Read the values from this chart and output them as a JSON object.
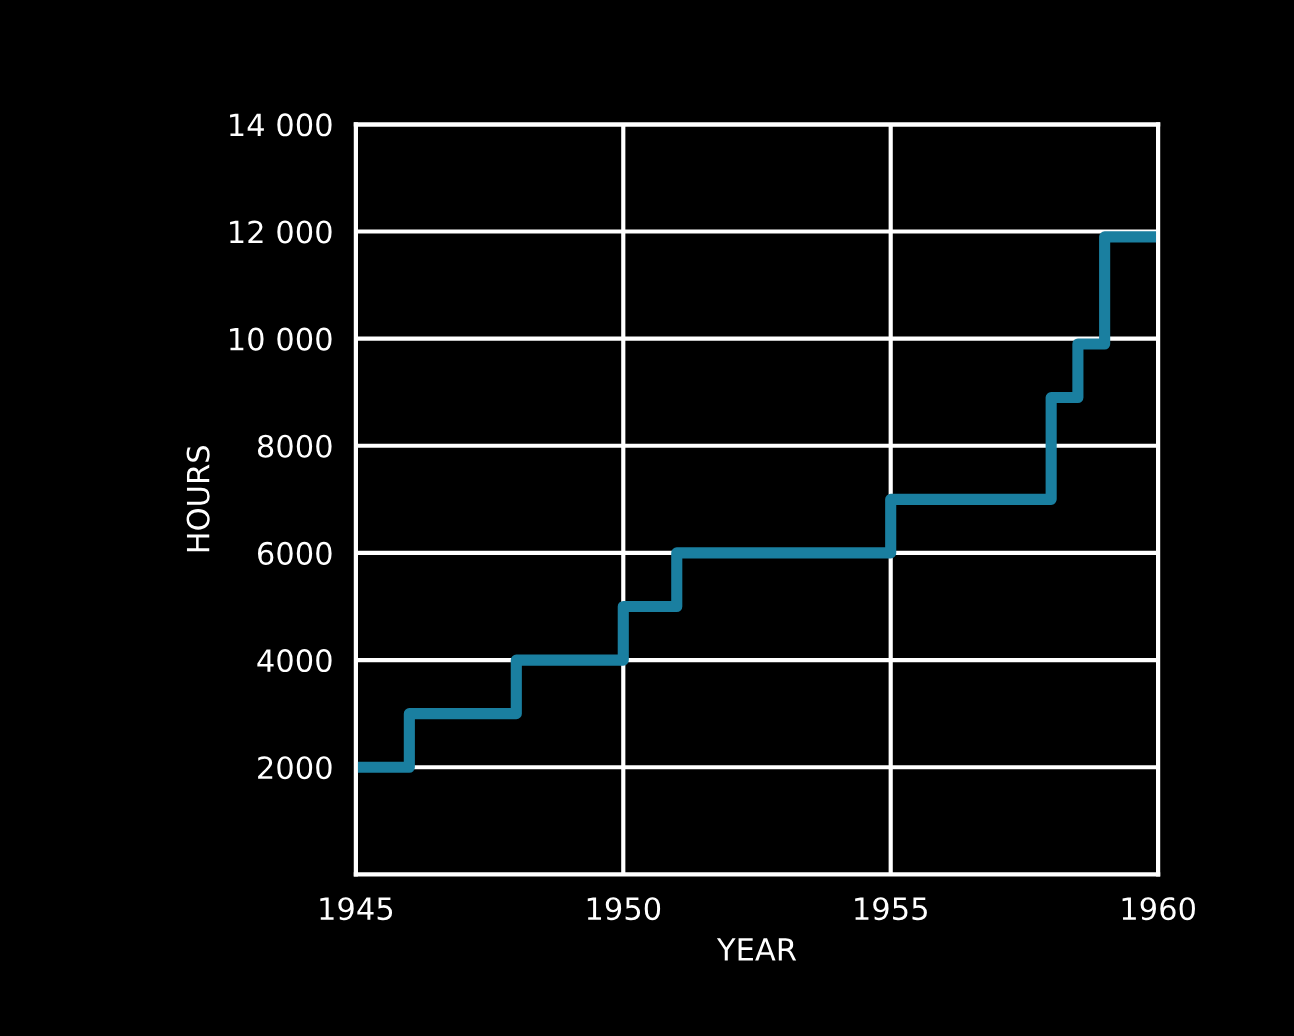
{
  "chart_data": {
    "type": "step",
    "xlabel": "YEAR",
    "ylabel": "HOURS",
    "x": [
      1945,
      1946,
      1948,
      1950,
      1951,
      1955,
      1958,
      1958.5,
      1959,
      1960
    ],
    "series": [
      {
        "color": "#1a7fa0",
        "values": [
          2000,
          3000,
          4000,
          5000,
          6000,
          7000,
          8900,
          9900,
          11900,
          11900
        ]
      }
    ],
    "xlim": [
      1945,
      1960
    ],
    "xticks": [
      1945,
      1950,
      1955,
      1960
    ],
    "ylim": [
      0,
      14000
    ],
    "yticks": [
      2000,
      4000,
      6000,
      8000,
      {
        "value": 10000,
        "label": "10 000"
      },
      {
        "value": 12000,
        "label": "12 000"
      },
      {
        "value": 14000,
        "label": "14 000"
      }
    ],
    "grid": true,
    "line_style": "solid",
    "marker": "none",
    "legend": false
  }
}
